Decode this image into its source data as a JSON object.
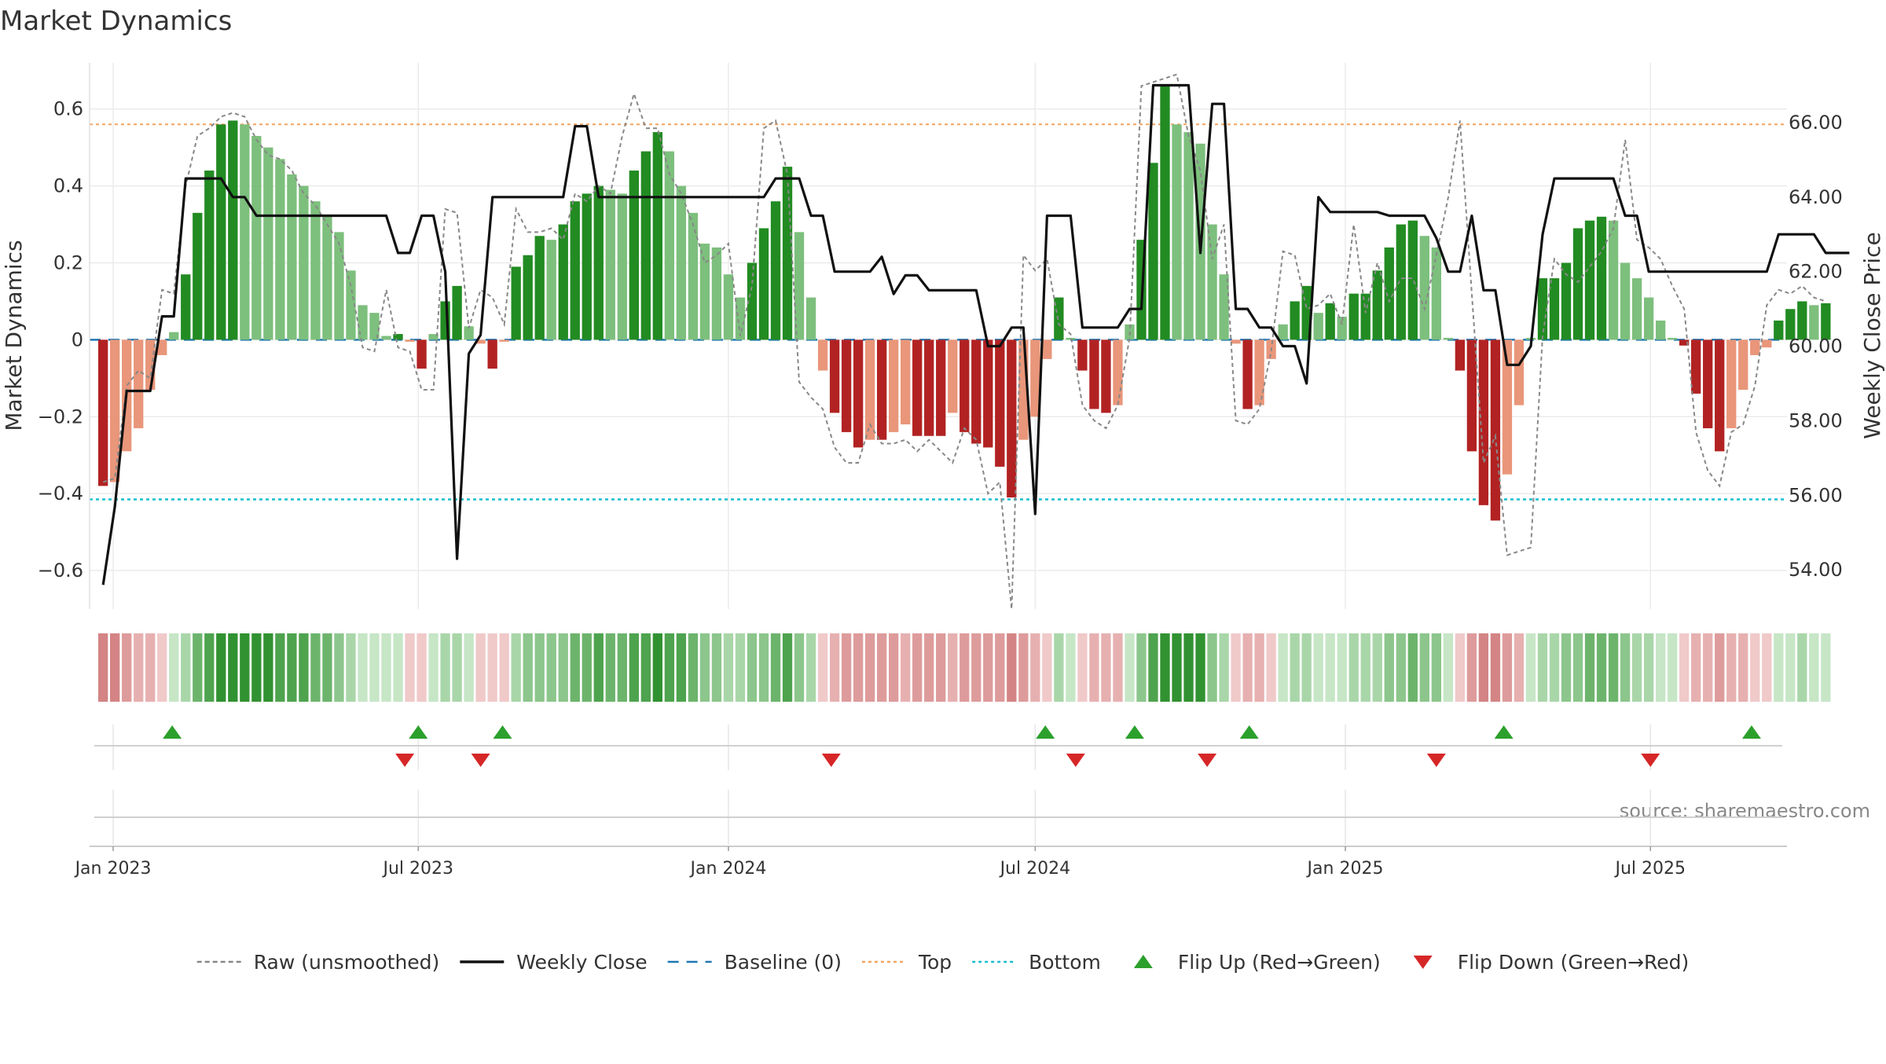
{
  "chart_data": {
    "type": "bar",
    "title": "Market Dynamics",
    "ylabel_left": "Market Dynamics",
    "ylabel_right": "Weekly Close Price",
    "source": "source: sharemaestro.com",
    "ylim_left": [
      -0.7,
      0.72
    ],
    "ylim_right": [
      52.95,
      67.6
    ],
    "yticks_left": [
      -0.6,
      -0.4,
      -0.2,
      0,
      0.2,
      0.4,
      0.6
    ],
    "ytick_labels_left": [
      "−0.6",
      "−0.4",
      "−0.2",
      "0",
      "0.2",
      "0.4",
      "0.6"
    ],
    "yticks_right": [
      54,
      56,
      58,
      60,
      62,
      64,
      66
    ],
    "ytick_labels_right": [
      "54.00",
      "56.00",
      "58.00",
      "60.00",
      "62.00",
      "64.00",
      "66.00"
    ],
    "x_range": [
      "2022-12-18",
      "2025-09-20"
    ],
    "x_ticks": [
      "2023-01-01",
      "2023-07-01",
      "2024-01-01",
      "2024-07-01",
      "2025-01-01",
      "2025-07-01"
    ],
    "x_tick_labels": [
      "Jan 2023",
      "Jul 2023",
      "Jan 2024",
      "Jul 2024",
      "Jan 2025",
      "Jul 2025"
    ],
    "grid": true,
    "legend_position": "bottom-center",
    "top_level": 0.56,
    "bottom_level": -0.415,
    "baseline": 0,
    "colors": {
      "strong_green": "#228b22",
      "light_green": "#7dbf7d",
      "strong_red": "#b22222",
      "light_red": "#e9967a",
      "close_line": "#111111",
      "raw_line": "#888888",
      "baseline": "#1f77b4",
      "top": "#f4a460",
      "bottom": "#17becf",
      "flip_up": "#2ca02c",
      "flip_down": "#d62728"
    },
    "weeks": {
      "start": "2022-12-26",
      "step_days": 7,
      "bars": [
        -0.38,
        -0.37,
        -0.29,
        -0.23,
        -0.13,
        -0.04,
        0.02,
        0.17,
        0.33,
        0.44,
        0.56,
        0.57,
        0.56,
        0.53,
        0.5,
        0.47,
        0.43,
        0.4,
        0.36,
        0.32,
        0.28,
        0.18,
        0.09,
        0.07,
        0.01,
        0.015,
        -0.005,
        -0.075,
        0.015,
        0.1,
        0.14,
        0.035,
        -0.01,
        -0.075,
        -0.005,
        0.19,
        0.22,
        0.27,
        0.26,
        0.3,
        0.36,
        0.38,
        0.4,
        0.39,
        0.38,
        0.44,
        0.49,
        0.54,
        0.49,
        0.4,
        0.33,
        0.25,
        0.24,
        0.17,
        0.11,
        0.2,
        0.29,
        0.36,
        0.45,
        0.28,
        0.11,
        -0.08,
        -0.19,
        -0.24,
        -0.28,
        -0.26,
        -0.26,
        -0.24,
        -0.22,
        -0.25,
        -0.25,
        -0.25,
        -0.19,
        -0.24,
        -0.27,
        -0.28,
        -0.33,
        -0.41,
        -0.26,
        -0.2,
        -0.05,
        0.11,
        0.005,
        -0.08,
        -0.18,
        -0.19,
        -0.17,
        0.04,
        0.26,
        0.46,
        0.66,
        0.56,
        0.54,
        0.51,
        0.3,
        0.17,
        -0.01,
        -0.18,
        -0.17,
        -0.05,
        0.04,
        0.1,
        0.14,
        0.07,
        0.095,
        0.06,
        0.12,
        0.12,
        0.18,
        0.24,
        0.3,
        0.31,
        0.27,
        0.24,
        0.005,
        -0.08,
        -0.29,
        -0.43,
        -0.47,
        -0.35,
        -0.17,
        0.005,
        0.16,
        0.16,
        0.2,
        0.29,
        0.31,
        0.32,
        0.31,
        0.2,
        0.16,
        0.11,
        0.05,
        0.005,
        -0.015,
        -0.14,
        -0.23,
        -0.29,
        -0.23,
        -0.13,
        -0.04,
        -0.02,
        0.05,
        0.08,
        0.1,
        0.09,
        0.095
      ],
      "raw": [
        -0.37,
        -0.36,
        -0.12,
        -0.08,
        -0.1,
        0.13,
        0.12,
        0.4,
        0.53,
        0.55,
        0.58,
        0.59,
        0.58,
        0.52,
        0.48,
        0.47,
        0.44,
        0.38,
        0.35,
        0.3,
        0.25,
        0.14,
        -0.02,
        -0.03,
        0.13,
        -0.02,
        -0.03,
        -0.13,
        -0.13,
        0.34,
        0.33,
        0.03,
        0.13,
        0.11,
        0.04,
        0.34,
        0.28,
        0.28,
        0.29,
        0.26,
        0.38,
        0.36,
        0.4,
        0.38,
        0.53,
        0.64,
        0.55,
        0.55,
        0.43,
        0.38,
        0.3,
        0.2,
        0.22,
        0.25,
        0.01,
        0.14,
        0.55,
        0.57,
        0.43,
        -0.11,
        -0.15,
        -0.18,
        -0.28,
        -0.32,
        -0.32,
        -0.22,
        -0.27,
        -0.27,
        -0.26,
        -0.29,
        -0.26,
        -0.29,
        -0.32,
        -0.23,
        -0.26,
        -0.4,
        -0.37,
        -0.7,
        0.22,
        0.18,
        0.21,
        0.04,
        0.015,
        -0.17,
        -0.21,
        -0.23,
        -0.17,
        0.005,
        0.66,
        0.67,
        0.68,
        0.69,
        0.53,
        0.44,
        0.21,
        0.3,
        -0.21,
        -0.22,
        -0.18,
        -0.03,
        0.23,
        0.22,
        0.08,
        0.09,
        0.12,
        0.04,
        0.3,
        0.07,
        0.2,
        0.1,
        0.16,
        0.16,
        0.08,
        0.22,
        0.37,
        0.57,
        0.12,
        -0.32,
        -0.25,
        -0.56,
        -0.55,
        -0.54,
        0.01,
        0.21,
        0.17,
        0.15,
        0.19,
        0.23,
        0.29,
        0.52,
        0.26,
        0.24,
        0.21,
        0.14,
        0.08,
        -0.24,
        -0.34,
        -0.38,
        -0.24,
        -0.22,
        -0.12,
        0.09,
        0.13,
        0.12,
        0.14,
        0.11,
        0.1
      ],
      "close": [
        53.6,
        55.7,
        58.8,
        58.8,
        58.8,
        60.8,
        60.8,
        64.5,
        64.5,
        64.5,
        64.5,
        64.0,
        64.0,
        63.5,
        63.5,
        63.5,
        63.5,
        63.5,
        63.5,
        63.5,
        63.5,
        63.5,
        63.5,
        63.5,
        63.5,
        62.5,
        62.5,
        63.5,
        63.5,
        62.0,
        54.3,
        59.8,
        60.3,
        64.0,
        64.0,
        64.0,
        64.0,
        64.0,
        64.0,
        64.0,
        65.9,
        65.9,
        64.0,
        64.0,
        64.0,
        64.0,
        64.0,
        64.0,
        64.0,
        64.0,
        64.0,
        64.0,
        64.0,
        64.0,
        64.0,
        64.0,
        64.0,
        64.5,
        64.5,
        64.5,
        63.5,
        63.5,
        62.0,
        62.0,
        62.0,
        62.0,
        62.4,
        61.4,
        61.9,
        61.9,
        61.5,
        61.5,
        61.5,
        61.5,
        61.5,
        60.0,
        60.0,
        60.5,
        60.5,
        55.5,
        63.5,
        63.5,
        63.5,
        60.5,
        60.5,
        60.5,
        60.5,
        61.0,
        61.0,
        67.0,
        67.0,
        67.0,
        67.0,
        62.5,
        66.5,
        66.5,
        61.0,
        61.0,
        60.5,
        60.5,
        60.0,
        60.0,
        59.0,
        64.0,
        63.6,
        63.6,
        63.6,
        63.6,
        63.6,
        63.5,
        63.5,
        63.5,
        63.5,
        62.9,
        62.0,
        62.0,
        63.5,
        61.5,
        61.5,
        59.5,
        59.5,
        60.0,
        63.0,
        64.5,
        64.5,
        64.5,
        64.5,
        64.5,
        64.5,
        63.5,
        63.5,
        62.0,
        62.0,
        62.0,
        62.0,
        62.0,
        62.0,
        62.0,
        62.0,
        62.0,
        62.0,
        62.0,
        63.0,
        63.0,
        63.0,
        63.0,
        62.5,
        62.5,
        62.5
      ]
    },
    "regime_band": {
      "green_palette": [
        "#c6e6c6",
        "#a9d6a9",
        "#8cc68c",
        "#6cb46c",
        "#4ea34e",
        "#319231"
      ],
      "red_palette": [
        "#f0c9c9",
        "#e7b0b0",
        "#de9b9b",
        "#d48484"
      ]
    },
    "flip_up_dates": [
      "2023-02-05",
      "2023-07-01",
      "2023-08-20",
      "2024-07-07",
      "2024-08-29",
      "2024-11-05",
      "2025-04-05",
      "2025-08-30"
    ],
    "flip_down_dates": [
      "2023-06-23",
      "2023-08-07",
      "2024-03-02",
      "2024-07-25",
      "2024-10-11",
      "2025-02-24",
      "2025-07-01"
    ],
    "legend": [
      {
        "label": "Raw (unsmoothed)",
        "kind": "dashed-line",
        "color": "#888888"
      },
      {
        "label": "Weekly Close",
        "kind": "line",
        "color": "#111111"
      },
      {
        "label": "Baseline (0)",
        "kind": "dashed-line",
        "color": "#1f77b4"
      },
      {
        "label": "Top",
        "kind": "dotted-line",
        "color": "#f4a460"
      },
      {
        "label": "Bottom",
        "kind": "dotted-line",
        "color": "#17becf"
      },
      {
        "label": "Flip Up (Red→Green)",
        "kind": "triangle-up",
        "color": "#2ca02c"
      },
      {
        "label": "Flip Down (Green→Red)",
        "kind": "triangle-down",
        "color": "#d62728"
      }
    ]
  }
}
